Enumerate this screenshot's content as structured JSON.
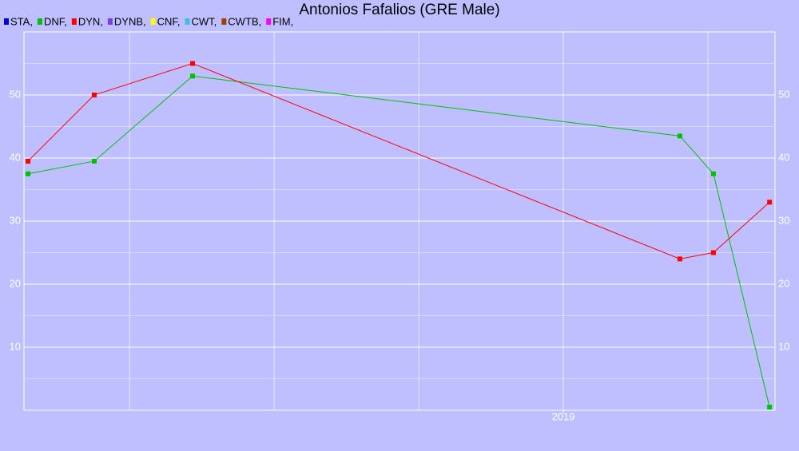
{
  "chart_data": {
    "type": "line",
    "title": "Antonios Fafalios (GRE Male)",
    "x": [
      2017.149,
      2017.378,
      2017.718,
      2019.403,
      2019.519,
      2019.713
    ],
    "series": [
      {
        "name": "STA,",
        "color": "#0000e0",
        "values": [
          null,
          null,
          null,
          null,
          null,
          null
        ]
      },
      {
        "name": "DNF,",
        "color": "#00c000",
        "values": [
          37.5,
          39.5,
          53,
          43.5,
          37.5,
          0.5
        ]
      },
      {
        "name": "DYN,",
        "color": "#ff0000",
        "values": [
          39.5,
          50,
          55,
          24,
          25,
          33
        ]
      },
      {
        "name": "DYNB,",
        "color": "#8040e0",
        "values": [
          null,
          null,
          null,
          null,
          null,
          null
        ]
      },
      {
        "name": "CNF,",
        "color": "#ffff00",
        "values": [
          null,
          null,
          null,
          null,
          null,
          null
        ]
      },
      {
        "name": "CWT,",
        "color": "#40c0e0",
        "values": [
          null,
          null,
          null,
          null,
          null,
          null
        ]
      },
      {
        "name": "CWTB,",
        "color": "#a04000",
        "values": [
          null,
          null,
          null,
          null,
          null,
          null
        ]
      },
      {
        "name": "FIM,",
        "color": "#ff00ff",
        "values": [
          null,
          null,
          null,
          null,
          null,
          null
        ]
      }
    ],
    "xlim": [
      2017.135,
      2019.732
    ],
    "xticks": [
      2019
    ],
    "xgrid": [
      2017.5,
      2018,
      2018.5,
      2019,
      2019.5
    ],
    "ylim": [
      0,
      60
    ],
    "yticks": [
      10,
      20,
      30,
      40,
      50
    ],
    "yminor": [
      5,
      15,
      25,
      35,
      45,
      55
    ],
    "grid": true
  }
}
